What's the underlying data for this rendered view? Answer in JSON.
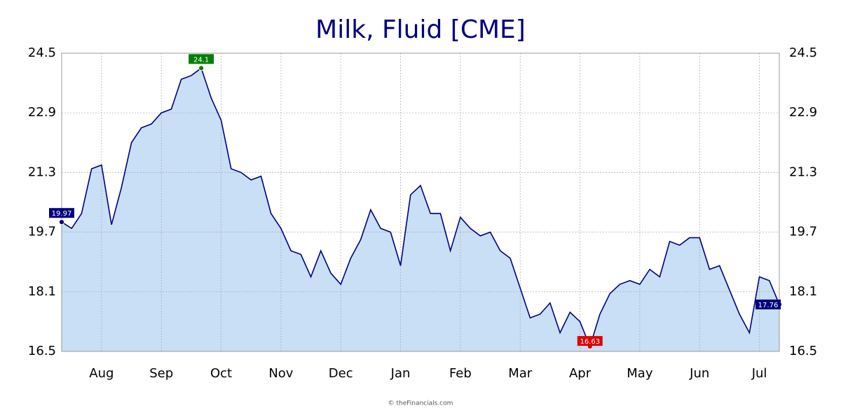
{
  "chart_data": {
    "type": "area",
    "title": "Milk, Fluid [CME]",
    "footer": "© theFinancials.com",
    "categories": [
      null,
      null,
      null,
      null,
      "Aug",
      null,
      null,
      null,
      null,
      null,
      "Sep",
      null,
      null,
      null,
      null,
      null,
      "Oct",
      null,
      null,
      null,
      null,
      null,
      "Nov",
      null,
      null,
      null,
      null,
      null,
      "Dec",
      null,
      null,
      null,
      null,
      null,
      "Jan",
      null,
      null,
      null,
      null,
      null,
      "Feb",
      null,
      null,
      null,
      null,
      null,
      "Mar",
      null,
      null,
      null,
      null,
      null,
      "Apr",
      null,
      null,
      null,
      null,
      null,
      "May",
      null,
      null,
      null,
      null,
      null,
      "Jun",
      null,
      null,
      null,
      null,
      null,
      "Jul",
      null,
      null
    ],
    "values": [
      19.97,
      19.8,
      20.2,
      21.4,
      21.5,
      19.9,
      20.9,
      22.1,
      22.5,
      22.6,
      22.9,
      23.0,
      23.8,
      23.9,
      24.1,
      23.3,
      22.7,
      21.4,
      21.3,
      21.1,
      21.2,
      20.2,
      19.8,
      19.2,
      19.1,
      18.5,
      19.2,
      18.6,
      18.3,
      19.0,
      19.5,
      20.3,
      19.8,
      19.7,
      18.8,
      20.7,
      20.95,
      20.2,
      20.2,
      19.2,
      20.1,
      19.8,
      19.6,
      19.7,
      19.2,
      19.0,
      18.2,
      17.4,
      17.5,
      17.8,
      17.0,
      17.55,
      17.3,
      16.63,
      17.5,
      18.05,
      18.3,
      18.4,
      18.3,
      18.7,
      18.5,
      19.45,
      19.35,
      19.55,
      19.55,
      18.7,
      18.8,
      18.15,
      17.5,
      17.0,
      18.5,
      18.4,
      17.76
    ],
    "line_color": "#000080",
    "fill_color": "#c8dff5",
    "label_colors": {
      "first": "#000080",
      "last": "#000080",
      "max": "#008000",
      "min": "#e00000"
    },
    "ylim": [
      16.5,
      24.5
    ],
    "yticks": [
      16.5,
      18.1,
      19.7,
      21.3,
      22.9,
      24.5
    ],
    "grid": true
  }
}
